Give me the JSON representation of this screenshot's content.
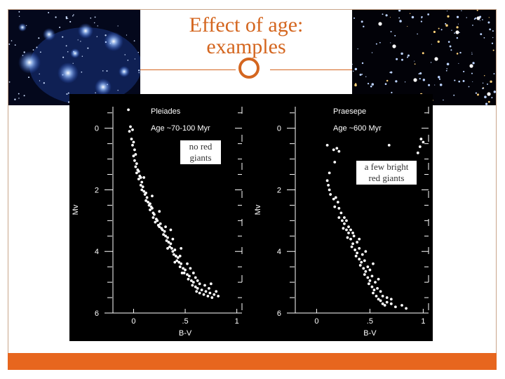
{
  "slide": {
    "title_line1": "Effect of age:",
    "title_line2": "examples",
    "accent_color": "#d4661f",
    "bottom_bar_color": "#e7661e",
    "photos": [
      {
        "name": "left-cluster-photo"
      },
      {
        "name": "right-cluster-photo"
      }
    ],
    "callouts": {
      "left": [
        "no red",
        "giants"
      ],
      "right": [
        "a few bright",
        "red giants"
      ]
    }
  },
  "chart_data": [
    {
      "type": "scatter",
      "title": "Pleiades",
      "subtitle": "Age ~70-100 Myr",
      "xlabel": "B-V",
      "ylabel": "Mv",
      "xlim": [
        -0.2,
        1.05
      ],
      "ylim": [
        6,
        -0.7
      ],
      "x_ticks": [
        "0",
        ".5",
        "1"
      ],
      "x_tick_values": [
        0,
        0.5,
        1
      ],
      "y_ticks": [
        "0",
        "2",
        "4",
        "6"
      ],
      "y_tick_values": [
        0,
        2,
        4,
        6
      ],
      "points": [
        [
          -0.05,
          -0.6
        ],
        [
          -0.04,
          0.1
        ],
        [
          -0.03,
          -0.05
        ],
        [
          -0.01,
          0.05
        ],
        [
          -0.02,
          0.35
        ],
        [
          0.0,
          0.45
        ],
        [
          -0.01,
          0.55
        ],
        [
          0.01,
          0.7
        ],
        [
          0.0,
          0.9
        ],
        [
          0.02,
          0.85
        ],
        [
          0.01,
          1.05
        ],
        [
          0.03,
          1.15
        ],
        [
          0.02,
          1.25
        ],
        [
          0.04,
          1.35
        ],
        [
          0.03,
          1.45
        ],
        [
          0.05,
          1.4
        ],
        [
          0.06,
          1.55
        ],
        [
          0.05,
          1.65
        ],
        [
          0.07,
          1.6
        ],
        [
          0.08,
          1.75
        ],
        [
          0.07,
          1.85
        ],
        [
          0.09,
          1.9
        ],
        [
          0.08,
          2.0
        ],
        [
          0.1,
          2.05
        ],
        [
          0.11,
          2.15
        ],
        [
          0.12,
          2.1
        ],
        [
          0.13,
          2.25
        ],
        [
          0.12,
          2.35
        ],
        [
          0.14,
          2.4
        ],
        [
          0.15,
          2.5
        ],
        [
          0.16,
          2.45
        ],
        [
          0.17,
          2.55
        ],
        [
          0.16,
          2.65
        ],
        [
          0.18,
          2.6
        ],
        [
          0.19,
          2.75
        ],
        [
          0.2,
          2.8
        ],
        [
          0.19,
          2.9
        ],
        [
          0.22,
          2.95
        ],
        [
          0.21,
          3.05
        ],
        [
          0.23,
          3.0
        ],
        [
          0.24,
          3.15
        ],
        [
          0.26,
          3.1
        ],
        [
          0.25,
          3.2
        ],
        [
          0.27,
          3.25
        ],
        [
          0.28,
          3.3
        ],
        [
          0.3,
          3.35
        ],
        [
          0.29,
          3.45
        ],
        [
          0.31,
          3.5
        ],
        [
          0.33,
          3.55
        ],
        [
          0.32,
          3.65
        ],
        [
          0.34,
          3.7
        ],
        [
          0.36,
          3.75
        ],
        [
          0.35,
          3.85
        ],
        [
          0.37,
          3.9
        ],
        [
          0.38,
          4.0
        ],
        [
          0.4,
          3.95
        ],
        [
          0.39,
          4.1
        ],
        [
          0.41,
          4.15
        ],
        [
          0.43,
          4.2
        ],
        [
          0.42,
          4.3
        ],
        [
          0.44,
          4.35
        ],
        [
          0.46,
          4.4
        ],
        [
          0.45,
          4.5
        ],
        [
          0.48,
          4.55
        ],
        [
          0.5,
          4.6
        ],
        [
          0.49,
          4.7
        ],
        [
          0.52,
          4.75
        ],
        [
          0.54,
          4.8
        ],
        [
          0.53,
          4.9
        ],
        [
          0.56,
          4.95
        ],
        [
          0.58,
          5.0
        ],
        [
          0.57,
          5.1
        ],
        [
          0.6,
          5.15
        ],
        [
          0.62,
          5.2
        ],
        [
          0.61,
          5.3
        ],
        [
          0.64,
          5.35
        ],
        [
          0.66,
          5.25
        ],
        [
          0.68,
          5.4
        ],
        [
          0.7,
          5.3
        ],
        [
          0.72,
          5.45
        ],
        [
          0.74,
          5.35
        ],
        [
          0.76,
          5.5
        ],
        [
          0.73,
          5.2
        ],
        [
          0.78,
          5.4
        ],
        [
          0.8,
          5.3
        ],
        [
          0.69,
          5.1
        ],
        [
          0.75,
          5.05
        ],
        [
          0.82,
          5.45
        ],
        [
          0.31,
          3.2
        ],
        [
          0.38,
          3.6
        ],
        [
          0.45,
          4.15
        ],
        [
          0.52,
          4.4
        ],
        [
          0.58,
          4.7
        ],
        [
          0.46,
          3.9
        ],
        [
          0.55,
          4.55
        ],
        [
          0.62,
          4.95
        ],
        [
          0.33,
          3.9
        ],
        [
          0.4,
          4.35
        ],
        [
          0.47,
          4.7
        ],
        [
          0.18,
          2.2
        ],
        [
          0.25,
          2.7
        ],
        [
          0.1,
          1.6
        ],
        [
          0.36,
          3.3
        ],
        [
          0.6,
          4.85
        ],
        [
          0.64,
          5.05
        ]
      ]
    },
    {
      "type": "scatter",
      "title": "Praesepe",
      "subtitle": "Age ~600 Myr",
      "xlabel": "B-V",
      "ylabel": "Mv",
      "xlim": [
        -0.2,
        1.05
      ],
      "ylim": [
        6,
        -0.7
      ],
      "x_ticks": [
        "0",
        ".5",
        "1"
      ],
      "x_tick_values": [
        0,
        0.5,
        1
      ],
      "y_ticks": [
        "0",
        "2",
        "4",
        "6"
      ],
      "y_tick_values": [
        0,
        2,
        4,
        6
      ],
      "points": [
        [
          0.98,
          0.35
        ],
        [
          1.0,
          0.45
        ],
        [
          0.97,
          0.6
        ],
        [
          0.95,
          0.8
        ],
        [
          0.68,
          0.55
        ],
        [
          0.1,
          0.55
        ],
        [
          0.16,
          0.7
        ],
        [
          0.21,
          0.75
        ],
        [
          0.19,
          0.65
        ],
        [
          0.17,
          1.1
        ],
        [
          0.12,
          1.45
        ],
        [
          0.1,
          1.7
        ],
        [
          0.11,
          1.85
        ],
        [
          0.12,
          2.0
        ],
        [
          0.13,
          2.15
        ],
        [
          0.16,
          2.3
        ],
        [
          0.18,
          2.25
        ],
        [
          0.2,
          2.4
        ],
        [
          0.17,
          2.55
        ],
        [
          0.21,
          2.6
        ],
        [
          0.23,
          2.75
        ],
        [
          0.21,
          2.9
        ],
        [
          0.24,
          3.0
        ],
        [
          0.26,
          3.1
        ],
        [
          0.25,
          3.25
        ],
        [
          0.28,
          3.3
        ],
        [
          0.3,
          3.4
        ],
        [
          0.29,
          3.55
        ],
        [
          0.32,
          3.6
        ],
        [
          0.34,
          3.75
        ],
        [
          0.33,
          3.85
        ],
        [
          0.36,
          3.95
        ],
        [
          0.38,
          4.05
        ],
        [
          0.37,
          4.15
        ],
        [
          0.4,
          4.25
        ],
        [
          0.42,
          4.35
        ],
        [
          0.41,
          4.45
        ],
        [
          0.44,
          4.55
        ],
        [
          0.46,
          4.65
        ],
        [
          0.45,
          4.75
        ],
        [
          0.48,
          4.85
        ],
        [
          0.5,
          4.95
        ],
        [
          0.49,
          5.05
        ],
        [
          0.52,
          5.15
        ],
        [
          0.54,
          5.25
        ],
        [
          0.53,
          5.35
        ],
        [
          0.56,
          5.45
        ],
        [
          0.58,
          5.55
        ],
        [
          0.6,
          5.6
        ],
        [
          0.62,
          5.7
        ],
        [
          0.64,
          5.75
        ],
        [
          0.66,
          5.65
        ],
        [
          0.7,
          5.7
        ],
        [
          0.74,
          5.8
        ],
        [
          0.8,
          5.75
        ],
        [
          0.84,
          5.85
        ],
        [
          0.3,
          3.2
        ],
        [
          0.35,
          3.5
        ],
        [
          0.4,
          3.9
        ],
        [
          0.45,
          4.3
        ],
        [
          0.5,
          4.6
        ],
        [
          0.55,
          5.0
        ],
        [
          0.6,
          5.3
        ],
        [
          0.38,
          3.7
        ],
        [
          0.43,
          4.1
        ],
        [
          0.48,
          4.5
        ],
        [
          0.52,
          4.8
        ],
        [
          0.57,
          5.2
        ],
        [
          0.62,
          5.45
        ],
        [
          0.26,
          2.9
        ],
        [
          0.32,
          3.3
        ],
        [
          0.28,
          3.0
        ],
        [
          0.34,
          3.4
        ],
        [
          0.4,
          3.6
        ],
        [
          0.46,
          4.0
        ],
        [
          0.53,
          4.4
        ],
        [
          0.58,
          4.9
        ],
        [
          0.66,
          5.5
        ],
        [
          0.7,
          5.55
        ]
      ]
    }
  ]
}
